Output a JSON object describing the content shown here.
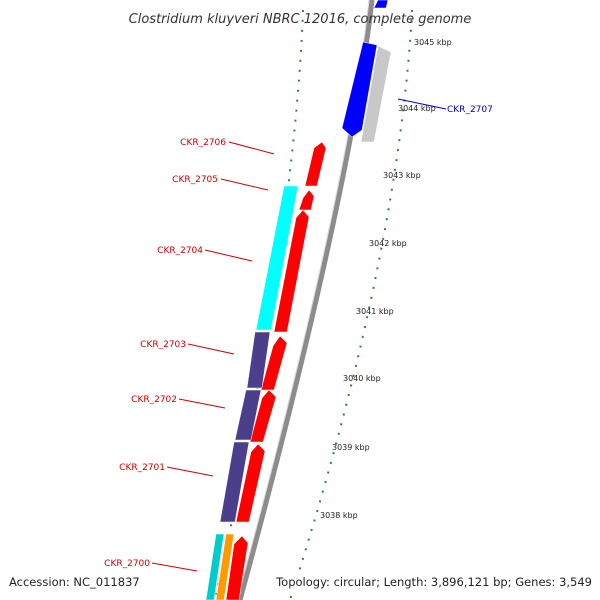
{
  "title": "Clostridium kluyveri NBRC 12016, complete genome",
  "accession": "Accession: NC_011837",
  "summary": "Topology: circular; Length: 3,896,121 bp; Genes: 3,549",
  "scale_labels": [
    "3045 kbp",
    "3044 kbp",
    "3043 kbp",
    "3042 kbp",
    "3041 kbp",
    "3040 kbp",
    "3039 kbp",
    "3038 kbp"
  ],
  "gene_labels": [
    {
      "name": "CKR_2707",
      "color": "#0000cc"
    },
    {
      "name": "CKR_2706",
      "color": "#cc0000"
    },
    {
      "name": "CKR_2705",
      "color": "#cc0000"
    },
    {
      "name": "CKR_2704",
      "color": "#cc0000"
    },
    {
      "name": "CKR_2703",
      "color": "#cc0000"
    },
    {
      "name": "CKR_2702",
      "color": "#cc0000"
    },
    {
      "name": "CKR_2701",
      "color": "#cc0000"
    },
    {
      "name": "CKR_2700",
      "color": "#cc0000"
    }
  ],
  "colors": {
    "backbone": "#8c8c8c",
    "tick": "#2a8a2a",
    "gene_red": "#ff0000",
    "gene_blue": "#0000ff",
    "gene_gray": "#c8c8c8",
    "cyan": "#00ffff",
    "slate": "#4b3f8c",
    "orange": "#ff9900",
    "teal": "#00cccc"
  }
}
